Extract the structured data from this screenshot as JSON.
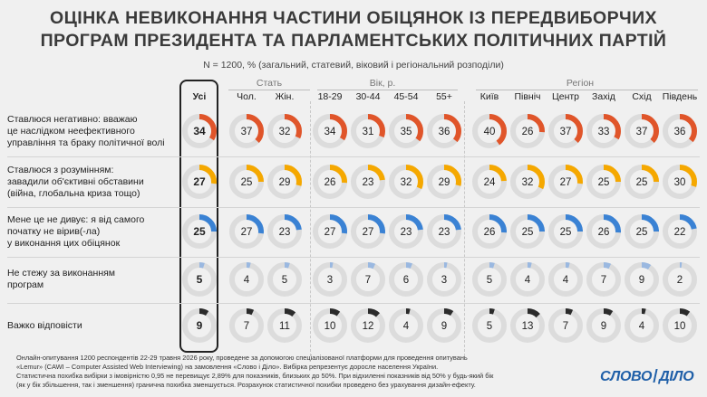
{
  "title_line1": "ОЦІНКА НЕВИКОНАННЯ ЧАСТИНИ ОБІЦЯНОК ІЗ ПЕРЕДВИБОРЧИХ",
  "title_line2": "ПРОГРАМ ПРЕЗИДЕНТА ТА ПАРЛАМЕНТСЬКИХ ПОЛІТИЧНИХ ПАРТІЙ",
  "subtitle": "N = 1200, % (загальний, статевий, віковий і регіональний розподіли)",
  "groups": {
    "sex": "Стать",
    "age": "Вік, р.",
    "region": "Регіон"
  },
  "footer": [
    "Онлайн-опитування 1200 респондентів 22-29 травня 2026 року, проведене за допомогою спеціалізованої платформи для проведення опитувань",
    "«Lemur» (CAWI – Computer Assisted Web Interviewing) на замовлення «Слово і Діло». Вибірка репрезентує доросле населення України.",
    "Статистична похибка вибірки з імовірністю 0,95 не перевищує 2,89% для показників, близьких до 50%. При відхиленні показників від 50% у будь-який бік",
    "(як у бік збільшення, так і зменшення) гранична похибка зменшується. Розрахунок статистичної похибки проведено без урахування дизайн-ефекту."
  ],
  "logo": {
    "left": "СЛОВО",
    "right": "ДІЛО"
  },
  "chart_data": {
    "type": "table",
    "title": "ОЦІНКА НЕВИКОНАННЯ ЧАСТИНИ ОБІЦЯНОК ІЗ ПЕРЕДВИБОРЧИХ ПРОГРАМ ПРЕЗИДЕНТА ТА ПАРЛАМЕНТСЬКИХ ПОЛІТИЧНИХ ПАРТІЙ",
    "unit": "%",
    "columns": [
      "Усі",
      "Чол.",
      "Жін.",
      "18-29",
      "30-44",
      "45-54",
      "55+",
      "Київ",
      "Північ",
      "Центр",
      "Захід",
      "Схід",
      "Південь"
    ],
    "rows": [
      {
        "label": [
          "Ставлюся негативно: вважаю",
          "це наслідком неефективного",
          "управління та браку політичної волі"
        ],
        "color": "#e0552a",
        "values": [
          34,
          37,
          32,
          34,
          31,
          35,
          36,
          40,
          26,
          37,
          33,
          37,
          36
        ]
      },
      {
        "label": [
          "Ставлюся з розумінням:",
          "завадили об'єктивні обставини",
          "(війна, глобальна криза тощо)"
        ],
        "color": "#f5a800",
        "values": [
          27,
          25,
          29,
          26,
          23,
          32,
          29,
          24,
          32,
          27,
          25,
          25,
          30
        ]
      },
      {
        "label": [
          "Мене це не дивує: я від самого",
          "початку не вірив(-ла)",
          "у виконання цих обіцянок"
        ],
        "color": "#3a82d4",
        "values": [
          25,
          27,
          23,
          27,
          27,
          23,
          23,
          26,
          25,
          25,
          26,
          25,
          22
        ]
      },
      {
        "label": [
          "Не стежу за виконанням",
          "програм"
        ],
        "color": "#9ab8e0",
        "values": [
          5,
          4,
          5,
          3,
          7,
          6,
          3,
          5,
          4,
          4,
          7,
          9,
          2
        ]
      },
      {
        "label": [
          "Важко відповісти"
        ],
        "color": "#2b2b2b",
        "values": [
          9,
          7,
          11,
          10,
          12,
          4,
          9,
          5,
          13,
          7,
          9,
          4,
          10
        ]
      }
    ]
  }
}
